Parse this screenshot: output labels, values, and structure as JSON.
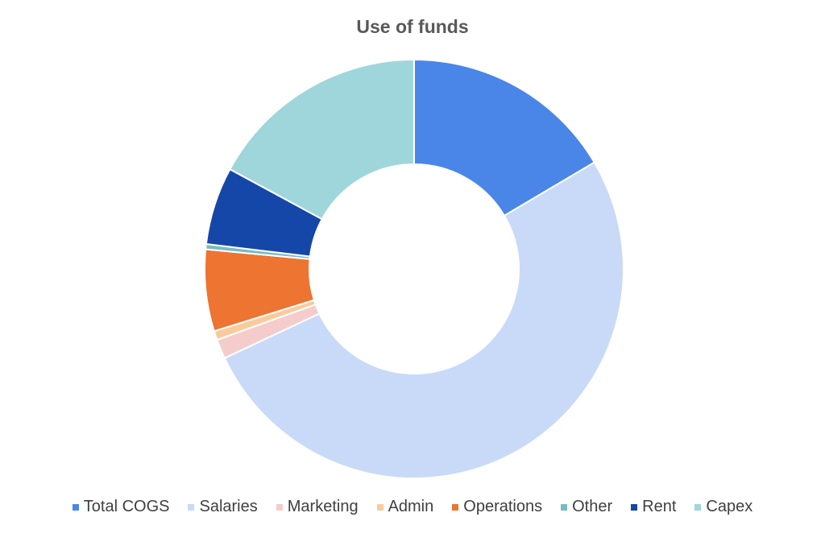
{
  "chart_data": {
    "type": "pie",
    "variant": "donut",
    "title": "Use of funds",
    "legend_position": "bottom",
    "categories": [
      "Total COGS",
      "Salaries",
      "Marketing",
      "Admin",
      "Operations",
      "Other",
      "Rent",
      "Capex"
    ],
    "values": [
      16.5,
      51.5,
      1.5,
      0.7,
      6.3,
      0.4,
      6.0,
      17.1
    ],
    "value_unit": "percent of total (estimated)",
    "colors": [
      "#4A86E8",
      "#C9DAF8",
      "#F4CCCC",
      "#F9CB9C",
      "#ED7431",
      "#76BCC4",
      "#1547A8",
      "#9ED6DB"
    ]
  }
}
